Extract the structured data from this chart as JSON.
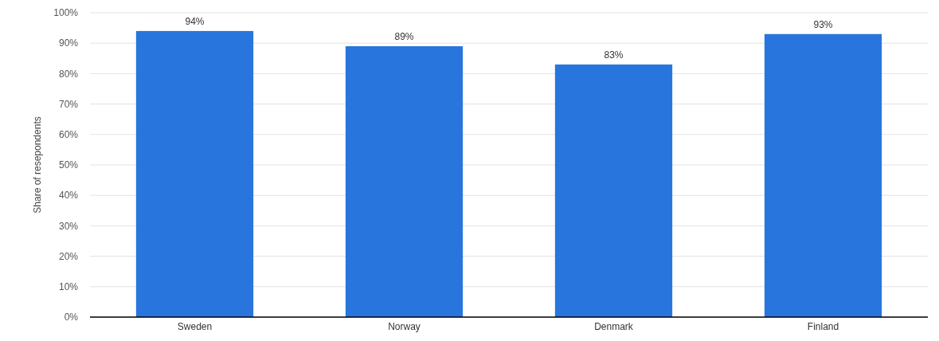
{
  "chart_data": {
    "type": "bar",
    "ylabel": "Share of resepondents",
    "categories": [
      "Sweden",
      "Norway",
      "Denmark",
      "Finland"
    ],
    "values": [
      94,
      89,
      83,
      93
    ],
    "value_labels": [
      "94%",
      "89%",
      "83%",
      "93%"
    ],
    "color": "#2876dd",
    "ylim": [
      0,
      100
    ],
    "yticks": [
      {
        "value": 0,
        "label": "0%"
      },
      {
        "value": 10,
        "label": "10%"
      },
      {
        "value": 20,
        "label": "20%"
      },
      {
        "value": 30,
        "label": "30%"
      },
      {
        "value": 40,
        "label": "40%"
      },
      {
        "value": 50,
        "label": "50%"
      },
      {
        "value": 60,
        "label": "60%"
      },
      {
        "value": 70,
        "label": "70%"
      },
      {
        "value": 80,
        "label": "80%"
      },
      {
        "value": 90,
        "label": "90%"
      },
      {
        "value": 100,
        "label": "100%"
      }
    ],
    "grid": "y"
  }
}
